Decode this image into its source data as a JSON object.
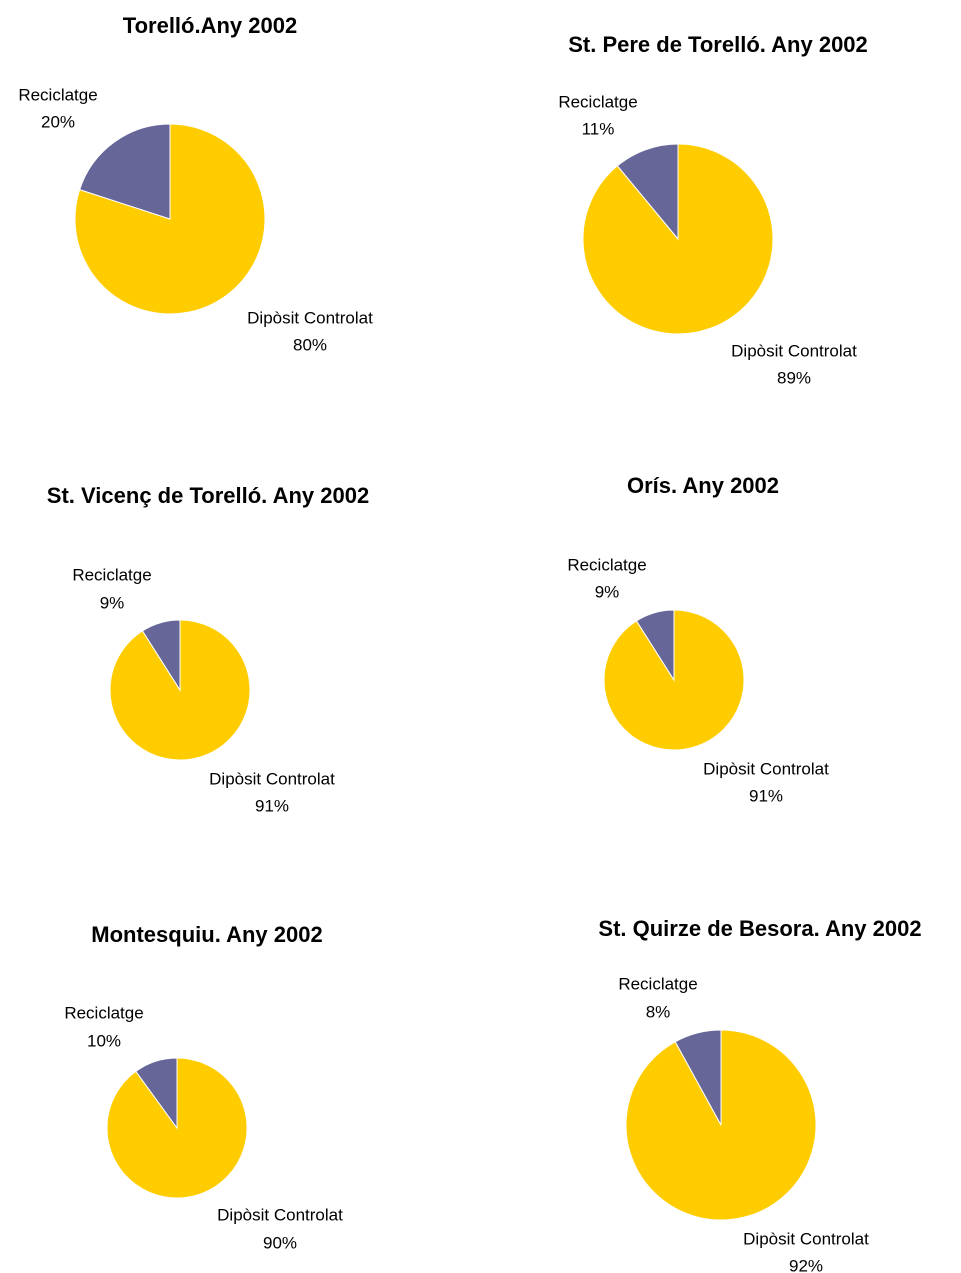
{
  "chart_data": [
    {
      "type": "pie",
      "title": "Torelló.Any 2002",
      "categories": [
        "Dipòsit Controlat",
        "Reciclatge"
      ],
      "values": [
        80,
        20
      ],
      "value_labels": [
        "80%",
        "20%"
      ],
      "colors": [
        "#ffcc00",
        "#666699"
      ]
    },
    {
      "type": "pie",
      "title": "St. Pere de Torelló. Any 2002",
      "categories": [
        "Dipòsit Controlat",
        "Reciclatge"
      ],
      "values": [
        89,
        11
      ],
      "value_labels": [
        "89%",
        "11%"
      ],
      "colors": [
        "#ffcc00",
        "#666699"
      ]
    },
    {
      "type": "pie",
      "title": "St. Vicenç de Torelló. Any 2002",
      "categories": [
        "Dipòsit Controlat",
        "Reciclatge"
      ],
      "values": [
        91,
        9
      ],
      "value_labels": [
        "91%",
        "9%"
      ],
      "colors": [
        "#ffcc00",
        "#666699"
      ]
    },
    {
      "type": "pie",
      "title": "Orís. Any 2002",
      "categories": [
        "Dipòsit Controlat",
        "Reciclatge"
      ],
      "values": [
        91,
        9
      ],
      "value_labels": [
        "91%",
        "9%"
      ],
      "colors": [
        "#ffcc00",
        "#666699"
      ]
    },
    {
      "type": "pie",
      "title": "Montesquiu. Any 2002",
      "categories": [
        "Dipòsit Controlat",
        "Reciclatge"
      ],
      "values": [
        90,
        10
      ],
      "value_labels": [
        "90%",
        "10%"
      ],
      "colors": [
        "#ffcc00",
        "#666699"
      ]
    },
    {
      "type": "pie",
      "title": "St. Quirze de Besora. Any 2002",
      "categories": [
        "Dipòsit Controlat",
        "Reciclatge"
      ],
      "values": [
        92,
        8
      ],
      "value_labels": [
        "92%",
        "8%"
      ],
      "colors": [
        "#ffcc00",
        "#666699"
      ]
    }
  ]
}
